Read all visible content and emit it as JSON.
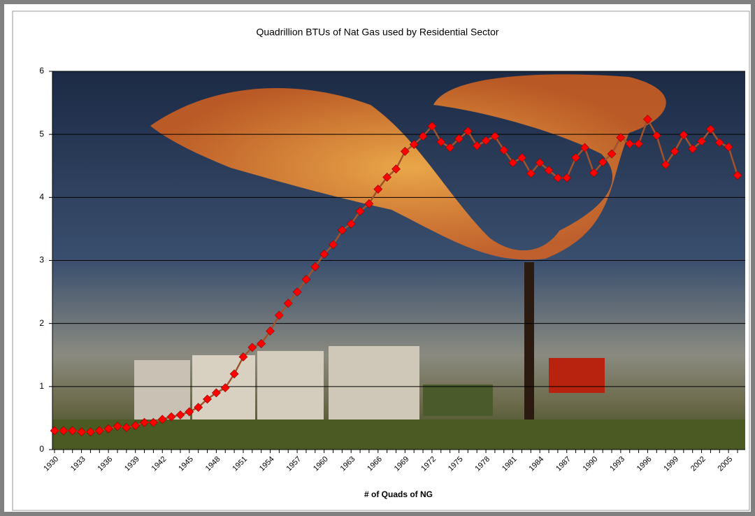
{
  "chart_data": {
    "type": "line",
    "title": "Quadrillion BTUs of Nat Gas used by Residential Sector",
    "x_label": "# of Quads of NG",
    "categories": [
      "1930",
      null,
      null,
      "1933",
      null,
      null,
      "1936",
      null,
      null,
      "1939",
      null,
      null,
      "1942",
      null,
      null,
      "1945",
      null,
      null,
      "1948",
      null,
      null,
      "1951",
      null,
      null,
      "1954",
      null,
      null,
      "1957",
      null,
      null,
      "1960",
      null,
      null,
      "1963",
      null,
      null,
      "1966",
      null,
      null,
      "1969",
      null,
      null,
      "1972",
      null,
      null,
      "1975",
      null,
      null,
      "1978",
      null,
      null,
      "1981",
      null,
      null,
      "1984",
      null,
      null,
      "1987",
      null,
      null,
      "1990",
      null,
      null,
      "1993",
      null,
      null,
      "1996",
      null,
      null,
      "1999",
      null,
      null,
      "2002",
      null,
      null,
      "2005",
      null
    ],
    "values": [
      0.3,
      0.3,
      0.3,
      0.28,
      0.28,
      0.3,
      0.33,
      0.37,
      0.35,
      0.38,
      0.43,
      0.43,
      0.48,
      0.52,
      0.55,
      0.6,
      0.67,
      0.8,
      0.9,
      0.98,
      1.2,
      1.47,
      1.62,
      1.68,
      1.88,
      2.13,
      2.32,
      2.5,
      2.7,
      2.9,
      3.1,
      3.25,
      3.48,
      3.58,
      3.78,
      3.9,
      4.13,
      4.32,
      4.45,
      4.73,
      4.84,
      4.97,
      5.13,
      4.88,
      4.79,
      4.93,
      5.05,
      4.82,
      4.9,
      4.97,
      4.75,
      4.55,
      4.63,
      4.38,
      4.55,
      4.43,
      4.31,
      4.31,
      4.63,
      4.79,
      4.39,
      4.56,
      4.69,
      4.95,
      4.85,
      4.85,
      5.24,
      4.98,
      4.52,
      4.73,
      4.99,
      4.77,
      4.89,
      5.08,
      4.87,
      4.8,
      4.35
    ],
    "color": "#a0522d",
    "marker_color": "#ff0000",
    "ylim": [
      0,
      6
    ],
    "yticks": [
      0,
      1,
      2,
      3,
      4,
      5,
      6
    ],
    "grid": true
  }
}
